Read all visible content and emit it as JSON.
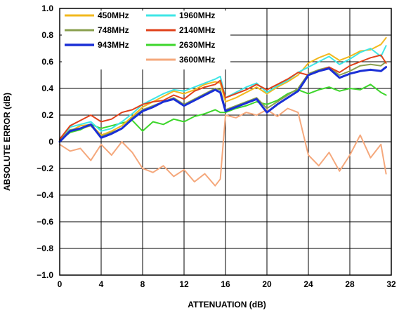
{
  "chart_data": {
    "type": "line",
    "xlabel": "ATTENUATION (dB)",
    "ylabel": "ABSOLUTE ERROR (dB)",
    "xlim": [
      0,
      32
    ],
    "ylim": [
      -1.0,
      1.0
    ],
    "x_ticks": [
      0,
      4,
      8,
      12,
      16,
      20,
      24,
      28,
      32
    ],
    "x_tick_labels": [
      "0",
      "4",
      "8",
      "12",
      "16",
      "20",
      "24",
      "28",
      "32"
    ],
    "y_ticks": [
      1.0,
      0.8,
      0.6,
      0.4,
      0.2,
      0,
      -0.2,
      -0.4,
      -0.6,
      -0.8,
      -1.0
    ],
    "y_tick_labels": [
      "1.0",
      "0.8",
      "0.6",
      "0.4",
      "0.2",
      "0",
      "−0.2",
      "−0.4",
      "−0.6",
      "−0.8",
      "−1.0"
    ],
    "grid": true,
    "legend_position": "top-left",
    "series": [
      {
        "name": "450MHz",
        "color": "#f2b81e",
        "x": [
          0,
          1,
          2,
          3,
          4,
          5,
          6,
          7,
          8,
          9,
          10,
          11,
          12,
          13,
          14,
          15,
          15.5,
          16,
          17,
          18,
          19,
          20,
          21,
          22,
          23,
          24,
          25,
          26,
          27,
          28,
          29,
          30,
          31,
          31.5
        ],
        "y": [
          0.01,
          0.08,
          0.12,
          0.13,
          0.05,
          0.08,
          0.12,
          0.19,
          0.26,
          0.3,
          0.34,
          0.38,
          0.36,
          0.39,
          0.43,
          0.45,
          0.44,
          0.3,
          0.33,
          0.37,
          0.41,
          0.36,
          0.41,
          0.45,
          0.5,
          0.59,
          0.63,
          0.66,
          0.61,
          0.64,
          0.68,
          0.69,
          0.73,
          0.78
        ]
      },
      {
        "name": "748MHz",
        "color": "#8aa04f",
        "x": [
          0,
          1,
          2,
          3,
          4,
          5,
          6,
          7,
          8,
          9,
          10,
          11,
          12,
          13,
          14,
          15,
          15.5,
          16,
          17,
          18,
          19,
          20,
          21,
          22,
          23,
          24,
          25,
          26,
          27,
          28,
          29,
          30,
          31,
          31.5
        ],
        "y": [
          0.01,
          0.09,
          0.1,
          0.12,
          0.04,
          0.07,
          0.1,
          0.18,
          0.24,
          0.27,
          0.3,
          0.33,
          0.28,
          0.32,
          0.36,
          0.4,
          0.39,
          0.24,
          0.27,
          0.3,
          0.33,
          0.25,
          0.3,
          0.35,
          0.4,
          0.51,
          0.54,
          0.56,
          0.5,
          0.53,
          0.57,
          0.58,
          0.57,
          0.6
        ]
      },
      {
        "name": "943MHz",
        "color": "#1a2fd6",
        "x": [
          0,
          1,
          2,
          3,
          4,
          5,
          6,
          7,
          8,
          9,
          10,
          11,
          12,
          13,
          14,
          15,
          15.5,
          16,
          17,
          18,
          19,
          20,
          21,
          22,
          23,
          24,
          25,
          26,
          27,
          28,
          29,
          30,
          31,
          31.5
        ],
        "y": [
          0.0,
          0.08,
          0.1,
          0.13,
          0.03,
          0.06,
          0.1,
          0.17,
          0.23,
          0.26,
          0.3,
          0.32,
          0.27,
          0.31,
          0.35,
          0.39,
          0.37,
          0.23,
          0.26,
          0.29,
          0.32,
          0.22,
          0.28,
          0.33,
          0.38,
          0.5,
          0.53,
          0.55,
          0.48,
          0.51,
          0.53,
          0.54,
          0.53,
          0.56
        ]
      },
      {
        "name": "1960MHz",
        "color": "#3fe6e6",
        "x": [
          0,
          1,
          2,
          3,
          4,
          5,
          6,
          7,
          8,
          9,
          10,
          11,
          12,
          13,
          14,
          15,
          15.5,
          16,
          17,
          18,
          19,
          20,
          21,
          22,
          23,
          24,
          25,
          26,
          27,
          28,
          29,
          30,
          31,
          31.5
        ],
        "y": [
          0.01,
          0.11,
          0.13,
          0.15,
          0.08,
          0.1,
          0.15,
          0.21,
          0.28,
          0.32,
          0.36,
          0.39,
          0.38,
          0.41,
          0.44,
          0.47,
          0.49,
          0.33,
          0.37,
          0.41,
          0.44,
          0.37,
          0.42,
          0.46,
          0.52,
          0.56,
          0.6,
          0.64,
          0.58,
          0.62,
          0.67,
          0.7,
          0.64,
          0.72
        ]
      },
      {
        "name": "2140MHz",
        "color": "#e0421b",
        "x": [
          0,
          1,
          2,
          3,
          4,
          5,
          6,
          7,
          8,
          9,
          10,
          11,
          12,
          13,
          14,
          15,
          15.5,
          16,
          17,
          18,
          19,
          20,
          21,
          22,
          23,
          24,
          25,
          26,
          27,
          28,
          29,
          30,
          31,
          31.5
        ],
        "y": [
          0.02,
          0.12,
          0.16,
          0.2,
          0.15,
          0.17,
          0.22,
          0.24,
          0.28,
          0.3,
          0.31,
          0.35,
          0.32,
          0.38,
          0.41,
          0.43,
          0.46,
          0.33,
          0.36,
          0.39,
          0.43,
          0.39,
          0.43,
          0.47,
          0.52,
          0.5,
          0.53,
          0.56,
          0.52,
          0.57,
          0.6,
          0.63,
          0.65,
          0.59
        ]
      },
      {
        "name": "2630MHz",
        "color": "#3dd62b",
        "x": [
          0,
          1,
          2,
          3,
          4,
          5,
          6,
          7,
          8,
          9,
          10,
          11,
          12,
          13,
          14,
          15,
          15.5,
          16,
          17,
          18,
          19,
          20,
          21,
          22,
          23,
          24,
          25,
          26,
          27,
          28,
          29,
          30,
          31,
          31.5
        ],
        "y": [
          0.01,
          0.07,
          0.09,
          0.13,
          0.1,
          0.12,
          0.14,
          0.16,
          0.08,
          0.15,
          0.13,
          0.17,
          0.15,
          0.19,
          0.21,
          0.24,
          0.22,
          0.22,
          0.25,
          0.27,
          0.3,
          0.28,
          0.31,
          0.36,
          0.39,
          0.36,
          0.39,
          0.41,
          0.38,
          0.4,
          0.39,
          0.43,
          0.37,
          0.35
        ]
      },
      {
        "name": "3600MHz",
        "color": "#f5a87c",
        "x": [
          0,
          1,
          2,
          3,
          4,
          5,
          6,
          7,
          8,
          9,
          10,
          11,
          12,
          13,
          14,
          15,
          15.5,
          16,
          17,
          18,
          19,
          20,
          21,
          22,
          23,
          24,
          25,
          26,
          27,
          28,
          29,
          30,
          31,
          31.5
        ],
        "y": [
          -0.02,
          -0.07,
          -0.05,
          -0.14,
          -0.02,
          -0.1,
          0.0,
          -0.08,
          -0.2,
          -0.23,
          -0.18,
          -0.26,
          -0.21,
          -0.3,
          -0.24,
          -0.33,
          -0.28,
          0.2,
          0.18,
          0.22,
          0.2,
          0.24,
          0.19,
          0.25,
          0.22,
          -0.1,
          -0.18,
          -0.08,
          -0.22,
          -0.1,
          0.05,
          -0.12,
          -0.02,
          -0.24
        ]
      }
    ]
  }
}
